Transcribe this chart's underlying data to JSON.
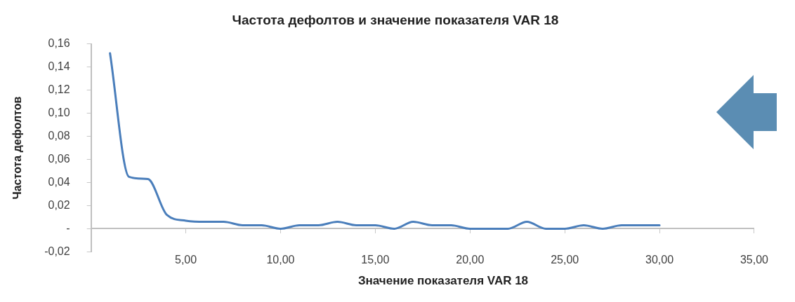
{
  "chart_data": {
    "type": "line",
    "title": "Частота дефолтов и значение показателя VAR 18",
    "xlabel": "Значение показателя VAR 18",
    "ylabel": "Частота дефолтов",
    "x": [
      1,
      2,
      3,
      4,
      5,
      6,
      7,
      8,
      9,
      10,
      11,
      12,
      13,
      14,
      15,
      16,
      17,
      18,
      19,
      20,
      21,
      22,
      23,
      24,
      25,
      26,
      27,
      28,
      29,
      30
    ],
    "series": [
      {
        "color": "#4a7ebb",
        "values": [
          0.152,
          0.045,
          0.043,
          0.012,
          0.007,
          0.006,
          0.006,
          0.003,
          0.003,
          0,
          0.003,
          0.003,
          0.006,
          0.003,
          0.003,
          0,
          0.006,
          0.003,
          0.003,
          0,
          0,
          0,
          0.006,
          0,
          0,
          0.003,
          0,
          0.003,
          0.003,
          0.003
        ]
      }
    ],
    "xlim": [
      0,
      35
    ],
    "xticks": [
      {
        "value": 0,
        "label": null
      },
      {
        "value": 5,
        "label": "5,00"
      },
      {
        "value": 10,
        "label": "10,00"
      },
      {
        "value": 15,
        "label": "15,00"
      },
      {
        "value": 20,
        "label": "20,00"
      },
      {
        "value": 25,
        "label": "25,00"
      },
      {
        "value": 30,
        "label": "30,00"
      },
      {
        "value": 35,
        "label": "35,00"
      }
    ],
    "ylim": [
      -0.02,
      0.16
    ],
    "yticks": [
      {
        "value": -0.02,
        "label": "-0,02"
      },
      {
        "value": 0,
        "label": "-"
      },
      {
        "value": 0.02,
        "label": "0,02"
      },
      {
        "value": 0.04,
        "label": "0,04"
      },
      {
        "value": 0.06,
        "label": "0,06"
      },
      {
        "value": 0.08,
        "label": "0,08"
      },
      {
        "value": 0.1,
        "label": "0,10"
      },
      {
        "value": 0.12,
        "label": "0,12"
      },
      {
        "value": 0.14,
        "label": "0,14"
      },
      {
        "value": 0.16,
        "label": "0,16"
      }
    ],
    "grid": false,
    "legend": false,
    "marker": "none",
    "line_style": "solid"
  }
}
